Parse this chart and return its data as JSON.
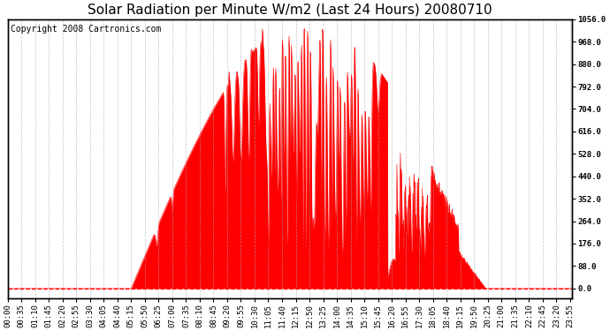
{
  "title": "Solar Radiation per Minute W/m2 (Last 24 Hours) 20080710",
  "copyright_text": "Copyright 2008 Cartronics.com",
  "background_color": "#ffffff",
  "plot_bg_color": "#ffffff",
  "fill_color": "#ff0000",
  "line_color": "#ff0000",
  "dashed_line_color": "#ff0000",
  "grid_color": "#aaaaaa",
  "yticks": [
    0.0,
    88.0,
    176.0,
    264.0,
    352.0,
    440.0,
    528.0,
    616.0,
    704.0,
    792.0,
    880.0,
    968.0,
    1056.0
  ],
  "ymax": 1056.0,
  "ymin": -40,
  "tick_interval_min": 35,
  "num_minutes": 1440,
  "title_fontsize": 11,
  "tick_fontsize": 6.5,
  "copyright_fontsize": 7
}
